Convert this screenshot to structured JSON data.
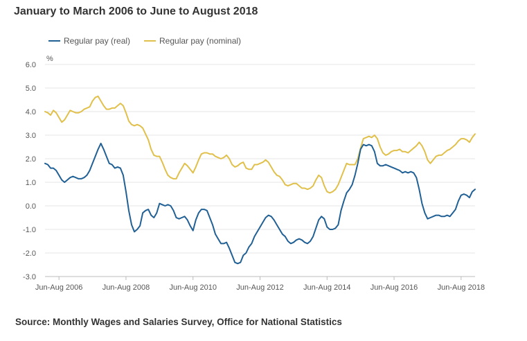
{
  "title": "January to March 2006 to June to August 2018",
  "source": "Source: Monthly Wages and Salaries Survey, Office for National Statistics",
  "chart_data": {
    "type": "line",
    "ylabel": "%",
    "ylim": [
      -3.0,
      6.0
    ],
    "yticks": [
      "6.0",
      "5.0",
      "4.0",
      "3.0",
      "2.0",
      "1.0",
      "0.0",
      "-1.0",
      "-2.0",
      "-3.0"
    ],
    "ytick_values": [
      6,
      5,
      4,
      3,
      2,
      1,
      0,
      -1,
      -2,
      -3
    ],
    "xticks": [
      "Jun-Aug 2006",
      "Jun-Aug 2008",
      "Jun-Aug 2010",
      "Jun-Aug 2012",
      "Jun-Aug 2014",
      "Jun-Aug 2016",
      "Jun-Aug 2018"
    ],
    "xtick_index": [
      5,
      29,
      53,
      77,
      101,
      125,
      149
    ],
    "x_start": "Jan-Mar 2006",
    "x_end": "Jun-Aug 2018",
    "grid": true,
    "legend_position": "top-left",
    "colors": {
      "real": "#206095",
      "nominal": "#e0c04a",
      "grid": "#e4e4e4",
      "axis": "#bbbbbb"
    },
    "series": [
      {
        "name": "Regular pay (real)",
        "key": "real",
        "values": [
          1.8,
          1.75,
          1.6,
          1.6,
          1.5,
          1.3,
          1.1,
          1.0,
          1.1,
          1.2,
          1.25,
          1.2,
          1.15,
          1.15,
          1.2,
          1.3,
          1.5,
          1.8,
          2.1,
          2.4,
          2.65,
          2.4,
          2.1,
          1.8,
          1.75,
          1.6,
          1.65,
          1.6,
          1.3,
          0.6,
          -0.2,
          -0.8,
          -1.1,
          -1.0,
          -0.85,
          -0.3,
          -0.2,
          -0.15,
          -0.4,
          -0.5,
          -0.3,
          0.1,
          0.05,
          0.0,
          0.05,
          0.0,
          -0.2,
          -0.5,
          -0.55,
          -0.5,
          -0.45,
          -0.6,
          -0.85,
          -1.05,
          -0.6,
          -0.3,
          -0.15,
          -0.15,
          -0.2,
          -0.5,
          -0.8,
          -1.2,
          -1.4,
          -1.6,
          -1.6,
          -1.55,
          -1.8,
          -2.1,
          -2.4,
          -2.45,
          -2.4,
          -2.1,
          -2.0,
          -1.75,
          -1.6,
          -1.3,
          -1.1,
          -0.9,
          -0.7,
          -0.5,
          -0.4,
          -0.45,
          -0.6,
          -0.8,
          -1.0,
          -1.2,
          -1.3,
          -1.5,
          -1.6,
          -1.55,
          -1.45,
          -1.4,
          -1.45,
          -1.55,
          -1.6,
          -1.5,
          -1.3,
          -0.95,
          -0.6,
          -0.45,
          -0.55,
          -0.9,
          -1.0,
          -1.0,
          -0.95,
          -0.8,
          -0.2,
          0.2,
          0.55,
          0.7,
          0.9,
          1.3,
          1.8,
          2.4,
          2.6,
          2.55,
          2.6,
          2.55,
          2.3,
          1.8,
          1.7,
          1.7,
          1.75,
          1.7,
          1.65,
          1.6,
          1.55,
          1.5,
          1.4,
          1.45,
          1.4,
          1.45,
          1.4,
          1.2,
          0.7,
          0.1,
          -0.3,
          -0.55,
          -0.5,
          -0.45,
          -0.4,
          -0.4,
          -0.45,
          -0.45,
          -0.4,
          -0.45,
          -0.3,
          -0.15,
          0.2,
          0.45,
          0.5,
          0.45,
          0.35,
          0.6,
          0.7
        ]
      },
      {
        "name": "Regular pay (nominal)",
        "key": "nominal",
        "values": [
          4.0,
          3.95,
          3.85,
          4.05,
          3.95,
          3.75,
          3.55,
          3.65,
          3.85,
          4.05,
          4.0,
          3.95,
          3.95,
          4.0,
          4.1,
          4.15,
          4.2,
          4.45,
          4.6,
          4.65,
          4.45,
          4.25,
          4.1,
          4.1,
          4.15,
          4.15,
          4.25,
          4.35,
          4.25,
          3.95,
          3.6,
          3.45,
          3.4,
          3.45,
          3.4,
          3.3,
          3.05,
          2.8,
          2.4,
          2.15,
          2.1,
          2.1,
          1.85,
          1.55,
          1.3,
          1.2,
          1.15,
          1.15,
          1.4,
          1.6,
          1.8,
          1.7,
          1.55,
          1.4,
          1.65,
          1.95,
          2.2,
          2.25,
          2.25,
          2.2,
          2.2,
          2.1,
          2.05,
          2.0,
          2.05,
          2.15,
          2.0,
          1.75,
          1.65,
          1.7,
          1.8,
          1.85,
          1.6,
          1.55,
          1.55,
          1.75,
          1.75,
          1.8,
          1.85,
          1.95,
          1.85,
          1.65,
          1.45,
          1.3,
          1.25,
          1.1,
          0.9,
          0.85,
          0.9,
          0.95,
          0.95,
          0.85,
          0.75,
          0.75,
          0.7,
          0.75,
          0.85,
          1.1,
          1.3,
          1.2,
          0.85,
          0.6,
          0.55,
          0.6,
          0.7,
          0.9,
          1.2,
          1.5,
          1.8,
          1.75,
          1.75,
          1.75,
          2.0,
          2.45,
          2.85,
          2.9,
          2.95,
          2.9,
          3.0,
          2.85,
          2.5,
          2.25,
          2.15,
          2.2,
          2.3,
          2.35,
          2.35,
          2.4,
          2.3,
          2.3,
          2.25,
          2.35,
          2.45,
          2.55,
          2.7,
          2.55,
          2.3,
          1.95,
          1.8,
          1.95,
          2.1,
          2.15,
          2.15,
          2.25,
          2.35,
          2.4,
          2.5,
          2.6,
          2.75,
          2.85,
          2.85,
          2.8,
          2.7,
          2.9,
          3.05
        ]
      }
    ]
  }
}
